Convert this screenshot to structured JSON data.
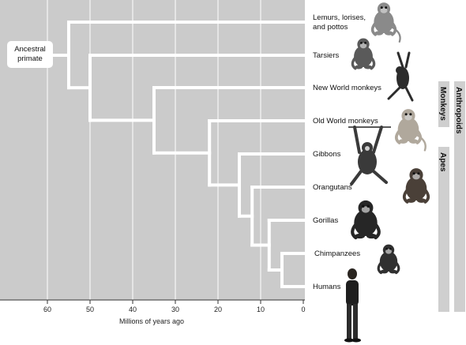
{
  "ancestor_label": "Ancestral\nprimate",
  "axis": {
    "title": "Millions of years ago",
    "ticks": [
      "60",
      "50",
      "40",
      "30",
      "20",
      "10",
      "0"
    ]
  },
  "taxa": [
    {
      "lines": [
        "Lemurs, lorises,",
        "and pottos"
      ]
    },
    {
      "lines": [
        "Tarsiers"
      ]
    },
    {
      "lines": [
        "New World monkeys"
      ]
    },
    {
      "lines": [
        "Old World monkeys"
      ]
    },
    {
      "lines": [
        "Gibbons"
      ]
    },
    {
      "lines": [
        "Orangutans"
      ]
    },
    {
      "lines": [
        "Gorillas"
      ]
    },
    {
      "lines": [
        "Chimpanzees"
      ]
    },
    {
      "lines": [
        "Humans"
      ]
    }
  ],
  "groups": {
    "monkeys": "Monkeys",
    "apes": "Apes",
    "anthropoids": "Anthropoids"
  },
  "colors": {
    "plot_bg": "#cbcbcb",
    "branch": "#ffffff",
    "group_bar": "#cfcfcf"
  },
  "tree_data": {
    "tip_age": 0,
    "split_ages_mya": [
      {
        "age": 55,
        "separates": "Lemurs, lorises, and pottos | others"
      },
      {
        "age": 50,
        "separates": "Tarsiers | anthropoids"
      },
      {
        "age": 35,
        "separates": "New World monkeys | Old World monkeys + apes"
      },
      {
        "age": 22,
        "separates": "Old World monkeys | apes"
      },
      {
        "age": 15,
        "separates": "Gibbons | great apes"
      },
      {
        "age": 12,
        "separates": "Orangutans | African apes"
      },
      {
        "age": 8,
        "separates": "Gorillas | chimpanzees + humans"
      },
      {
        "age": 5,
        "separates": "Chimpanzees | humans"
      }
    ]
  },
  "illustrations": [
    {
      "name": "lemur-illustration"
    },
    {
      "name": "tarsier-illustration"
    },
    {
      "name": "spider-monkey-illustration"
    },
    {
      "name": "macaque-illustration"
    },
    {
      "name": "gibbon-illustration"
    },
    {
      "name": "orangutan-illustration"
    },
    {
      "name": "gorilla-illustration"
    },
    {
      "name": "chimpanzee-illustration"
    },
    {
      "name": "human-illustration"
    }
  ]
}
